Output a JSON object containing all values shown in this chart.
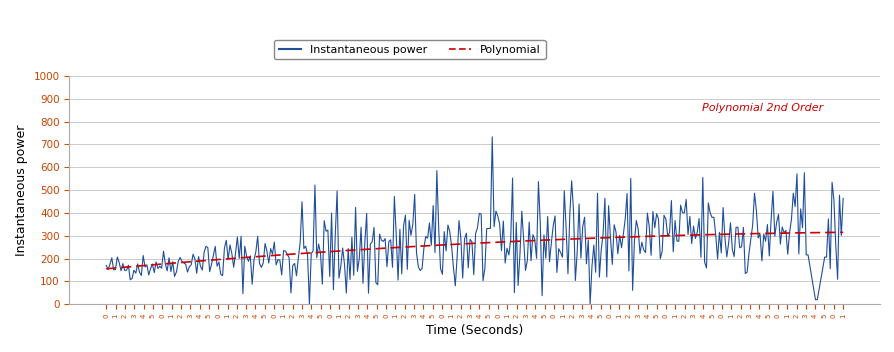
{
  "title": "",
  "xlabel": "Time (Seconds)",
  "ylabel": "Instantaneous power",
  "ylim": [
    0,
    1000
  ],
  "yticks": [
    0,
    100,
    200,
    300,
    400,
    500,
    600,
    700,
    800,
    900,
    1000
  ],
  "line_color": "#1f4e9a",
  "poly_color": "#cc0000",
  "poly_label_color": "#cc0000",
  "poly_label": "Polynomial 2nd Order",
  "legend_labels": [
    "Instantaneous power",
    "Polynomial"
  ],
  "background_color": "#ffffff",
  "grid_color": "#cccccc",
  "tick_label_color_main": "#cc0000",
  "tick_label_color_alt": "#1f4e9a",
  "num_points": 400,
  "poly_coeffs": [
    -0.0008,
    0.72,
    155
  ],
  "noise_seed": 42
}
